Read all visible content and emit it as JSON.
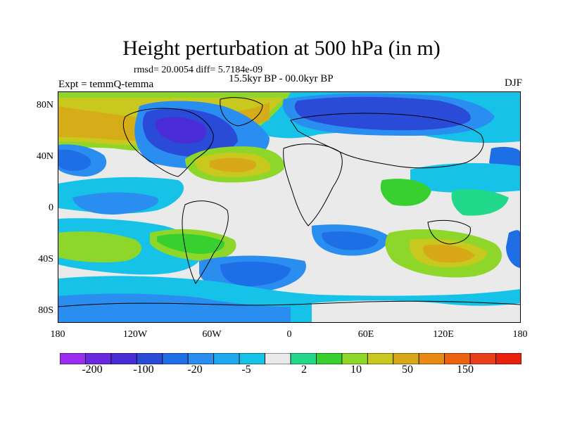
{
  "title": "Height perturbation at 500 hPa (in m)",
  "stats_line": "rmsd= 20.0054 diff= 5.7184e-09",
  "period_line": "15.5kyr BP - 00.0kyr BP",
  "experiment_line": "Expt = temmQ-temma",
  "season": "DJF",
  "latitude_ticks": [
    "80N",
    "40N",
    "0",
    "40S",
    "80S"
  ],
  "longitude_ticks": [
    "180",
    "120W",
    "60W",
    "0",
    "60E",
    "120E",
    "180"
  ],
  "colorbar": {
    "labels": [
      "-200",
      "-100",
      "-20",
      "-5",
      "2",
      "10",
      "50",
      "150"
    ],
    "colors": [
      "#9a2ef0",
      "#6a28e0",
      "#4a2cd6",
      "#2a4ad8",
      "#1e6ee6",
      "#2a8ef0",
      "#1ea8f0",
      "#16c2e8",
      "#eaeaea",
      "#22d88a",
      "#38d02e",
      "#8ed62a",
      "#c8c81e",
      "#d8a818",
      "#e88a14",
      "#ec6412",
      "#e8401a",
      "#e8200e"
    ]
  },
  "map": {
    "background_color": "#eaeaea",
    "anomaly_colors": {
      "strong_neg": "#4a2cd6",
      "mid_neg": "#2a4ad8",
      "neg": "#1e6ee6",
      "weak_neg": "#2a8ef0",
      "slight_neg": "#16c2e8",
      "slight_pos": "#22d88a",
      "pos": "#38d02e",
      "mid_pos": "#8ed62a",
      "strong_pos": "#c8c81e",
      "very_pos": "#d8a818"
    }
  }
}
